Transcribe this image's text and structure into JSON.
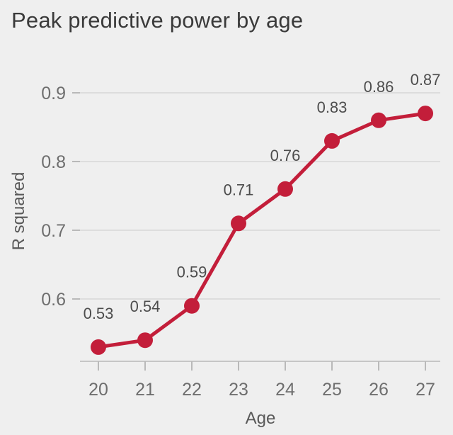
{
  "chart_data": {
    "type": "line",
    "title": "Peak predictive power by age",
    "xlabel": "Age",
    "ylabel": "R squared",
    "x": [
      20,
      21,
      22,
      23,
      24,
      25,
      26,
      27
    ],
    "values": [
      0.53,
      0.54,
      0.59,
      0.71,
      0.76,
      0.83,
      0.86,
      0.87
    ],
    "point_labels": [
      "0.53",
      "0.54",
      "0.59",
      "0.71",
      "0.76",
      "0.83",
      "0.86",
      "0.87"
    ],
    "xtick_labels": [
      "20",
      "21",
      "22",
      "23",
      "24",
      "25",
      "26",
      "27"
    ],
    "ytick_values": [
      0.6,
      0.7,
      0.8,
      0.9
    ],
    "ytick_labels": [
      "0.6",
      "0.7",
      "0.8",
      "0.9"
    ],
    "ylim": [
      0.505,
      0.93
    ],
    "xlim": [
      19.6,
      27.3
    ],
    "grid": "horizontal-only",
    "legend": "none",
    "line_color": "#c31e3a",
    "point_color": "#c31e3a"
  },
  "colors": {
    "background": "#efefef",
    "gridline": "#d7d7d7",
    "axis": "#b9b9b9",
    "title_text": "#3a3a3a",
    "tick_text": "#6e6e6e",
    "axis_title_text": "#595959",
    "point_label_text": "#4d4d4d"
  }
}
